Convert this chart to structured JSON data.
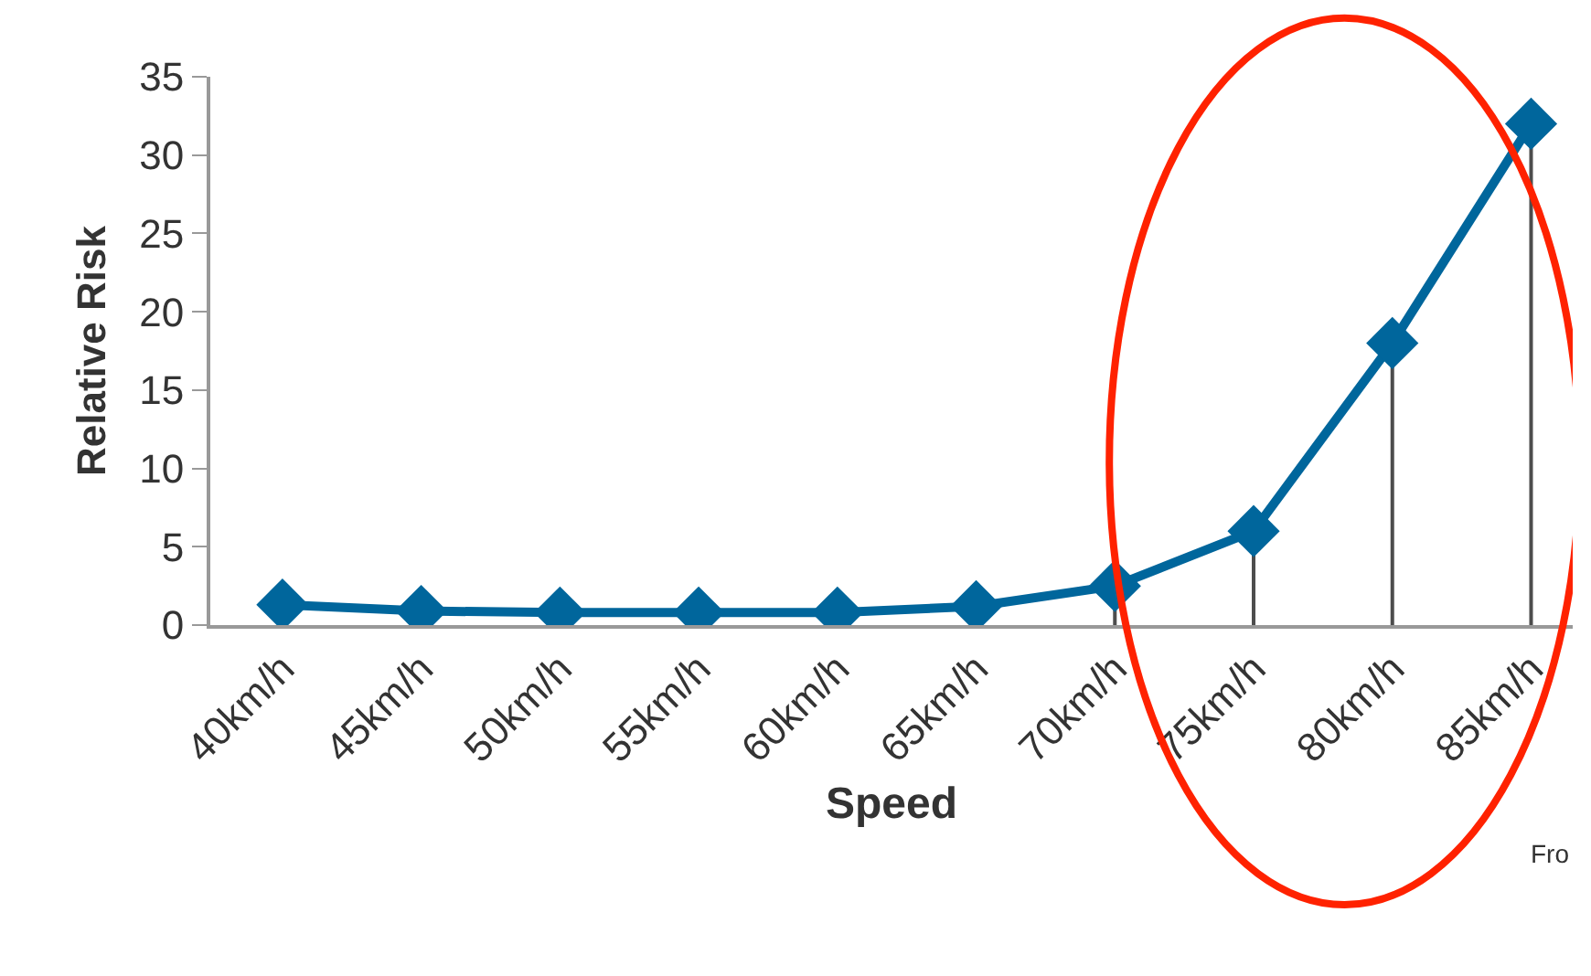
{
  "chart_data": {
    "type": "line",
    "xlabel": "Speed",
    "ylabel": "Relative Risk",
    "categories": [
      "40km/h",
      "45km/h",
      "50km/h",
      "55km/h",
      "60km/h",
      "65km/h",
      "70km/h",
      "75km/h",
      "80km/h",
      "85km/h"
    ],
    "series": [
      {
        "color": "#00669c",
        "values": [
          1.3,
          0.9,
          0.8,
          0.8,
          0.8,
          1.2,
          2.5,
          6,
          18,
          32
        ],
        "errors": [
          [
            1.3,
            0
          ],
          [
            0.9,
            0
          ],
          [
            0.8,
            0
          ],
          [
            0.8,
            0
          ],
          [
            0.8,
            0
          ],
          [
            1.2,
            0
          ],
          [
            2.5,
            0
          ],
          [
            6,
            0
          ],
          [
            18,
            0
          ],
          [
            32,
            0
          ]
        ]
      }
    ],
    "ylim": [
      0,
      35
    ],
    "yticks": [
      0,
      5,
      10,
      15,
      20,
      25,
      30,
      35
    ],
    "marker": "diamond",
    "line_style": "solid",
    "annotations": [
      "Fro"
    ]
  }
}
